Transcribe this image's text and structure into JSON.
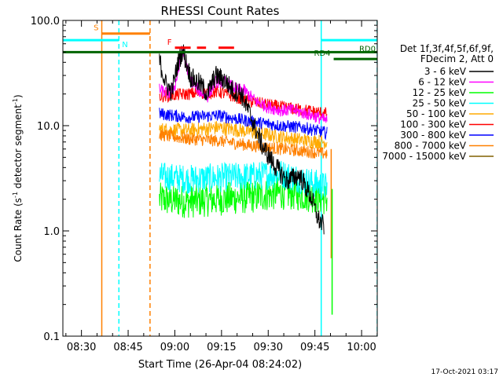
{
  "chart_data": {
    "type": "line",
    "title": "RHESSI Count Rates",
    "xlabel": "Start Time (26-Apr-04 08:24:02)",
    "ylabel_main": "Count Rate (s",
    "ylabel_sup": "-1",
    "ylabel_tail": " detector segment",
    "y_scale": "log",
    "ylim": [
      0.1,
      100.0
    ],
    "y_ticks": [
      "0.1",
      "1.0",
      "10.0",
      "100.0"
    ],
    "x_ticks": [
      "08:30",
      "08:45",
      "09:00",
      "09:15",
      "09:30",
      "09:45",
      "10:00"
    ],
    "x_units": "minutes after 08:24:02",
    "xlim": [
      0,
      101
    ],
    "x_tick_values": [
      5.97,
      20.97,
      35.97,
      50.97,
      65.97,
      80.97,
      95.97
    ],
    "legend_placement": "right",
    "legend_header": [
      "Det 1f,3f,4f,5f,6f,9f,",
      "FDecim 2, Att 0"
    ],
    "series": [
      {
        "name": "3 - 6 keV",
        "color": "#000000",
        "values": [
          [
            31.0,
            42
          ],
          [
            33.0,
            25
          ],
          [
            35.0,
            21
          ],
          [
            37.0,
            40
          ],
          [
            38.5,
            52
          ],
          [
            41.0,
            29
          ],
          [
            44.0,
            25
          ],
          [
            46.5,
            20
          ],
          [
            49.0,
            30
          ],
          [
            52.0,
            27
          ],
          [
            55.0,
            21
          ],
          [
            57.0,
            21
          ],
          [
            60.0,
            13
          ],
          [
            64.0,
            6.5
          ],
          [
            68.0,
            4.2
          ],
          [
            72.0,
            3.0
          ],
          [
            76.0,
            3.4
          ],
          [
            80.0,
            2.0
          ],
          [
            82.0,
            1.3
          ],
          [
            84.0,
            1.1
          ]
        ]
      },
      {
        "name": "6 - 12 keV",
        "color": "#ff00ff",
        "values": [
          [
            31.0,
            22
          ],
          [
            34.0,
            20
          ],
          [
            36.0,
            24
          ],
          [
            38.5,
            50
          ],
          [
            41.0,
            27
          ],
          [
            44.0,
            21
          ],
          [
            46.5,
            19
          ],
          [
            49.0,
            26
          ],
          [
            52.0,
            26
          ],
          [
            56.0,
            22
          ],
          [
            58.0,
            22
          ],
          [
            62.0,
            17
          ],
          [
            66.0,
            15
          ],
          [
            70.0,
            14
          ],
          [
            74.0,
            14
          ],
          [
            78.0,
            13
          ],
          [
            82.0,
            12
          ],
          [
            85.0,
            11
          ]
        ]
      },
      {
        "name": "12 - 25 keV",
        "color": "#00ff00",
        "values": [
          [
            31.0,
            2.0
          ],
          [
            40.0,
            1.9
          ],
          [
            50.0,
            2.0
          ],
          [
            60.0,
            2.1
          ],
          [
            70.0,
            2.3
          ],
          [
            78.0,
            2.2
          ],
          [
            85.0,
            2.0
          ]
        ]
      },
      {
        "name": "25 - 50 keV",
        "color": "#00ffff",
        "values": [
          [
            31.0,
            3.3
          ],
          [
            40.0,
            3.1
          ],
          [
            50.0,
            3.2
          ],
          [
            60.0,
            3.3
          ],
          [
            70.0,
            3.5
          ],
          [
            78.0,
            3.0
          ],
          [
            85.0,
            2.6
          ]
        ]
      },
      {
        "name": "50 - 100 keV",
        "color": "#ffaa00",
        "values": [
          [
            31.0,
            9.2
          ],
          [
            40.0,
            9.0
          ],
          [
            50.0,
            9.6
          ],
          [
            60.0,
            8.8
          ],
          [
            70.0,
            7.8
          ],
          [
            78.0,
            7.2
          ],
          [
            85.0,
            7.0
          ]
        ]
      },
      {
        "name": "100 - 300 keV",
        "color": "#ff0000",
        "values": [
          [
            31.0,
            19
          ],
          [
            40.0,
            20
          ],
          [
            50.0,
            21
          ],
          [
            60.0,
            17
          ],
          [
            70.0,
            15
          ],
          [
            78.0,
            14
          ],
          [
            85.0,
            13
          ]
        ]
      },
      {
        "name": "300 - 800 keV",
        "color": "#0000ff",
        "values": [
          [
            31.0,
            13
          ],
          [
            40.0,
            12
          ],
          [
            50.0,
            12.5
          ],
          [
            60.0,
            11
          ],
          [
            70.0,
            10
          ],
          [
            78.0,
            9.5
          ],
          [
            85.0,
            8.5
          ]
        ]
      },
      {
        "name": "800 - 7000 keV",
        "color": "#ff8000",
        "values": [
          [
            31.0,
            8.2
          ],
          [
            40.0,
            7.5
          ],
          [
            50.0,
            7.2
          ],
          [
            60.0,
            6.5
          ],
          [
            70.0,
            6.0
          ],
          [
            78.0,
            5.7
          ],
          [
            85.0,
            5.4
          ]
        ]
      },
      {
        "name": "7000 - 15000 keV",
        "color": "#806000",
        "values": []
      }
    ],
    "vertical_lines": [
      {
        "x": 12.5,
        "color": "#ff8000",
        "dashed": false
      },
      {
        "x": 18.0,
        "color": "#00ffff",
        "dashed": true
      },
      {
        "x": 28.0,
        "color": "#ff8000",
        "dashed": true
      },
      {
        "x": 83.0,
        "color": "#00ffff",
        "dashed": false
      },
      {
        "x": 101.0,
        "color": "#00ffff",
        "dashed": true
      }
    ],
    "flags": [
      {
        "label": "S",
        "color": "#ff8000",
        "x_start": 12.5,
        "x_end": 28.0,
        "y": 75,
        "label_side": "left"
      },
      {
        "label": "N",
        "color": "#00ffff",
        "x_start": 0,
        "x_end": 18.0,
        "y": 65,
        "label_side": "right"
      },
      {
        "label": "N",
        "color": "#00ffff",
        "x_start": 83.0,
        "x_end": 101.0,
        "y": 65,
        "label_side": "none"
      },
      {
        "label": "F",
        "color": "#ff0000",
        "x_start": 36.0,
        "x_end": 46.0,
        "y": 55,
        "label_side": "left",
        "dashed": true
      },
      {
        "label": "F",
        "color": "#ff0000",
        "x_start": 50.0,
        "x_end": 55.0,
        "y": 55,
        "label_side": "none"
      },
      {
        "label": "RD0",
        "color": "#006400",
        "x_start": 0,
        "x_end": 101.0,
        "y": 50,
        "label_side": "right-inside"
      },
      {
        "label": "RD4",
        "color": "#006400",
        "x_start": 87.0,
        "x_end": 101.0,
        "y": 43,
        "label_side": "left"
      }
    ],
    "grid": false
  },
  "footer": {
    "timestamp": "17-Oct-2021 03:17"
  }
}
